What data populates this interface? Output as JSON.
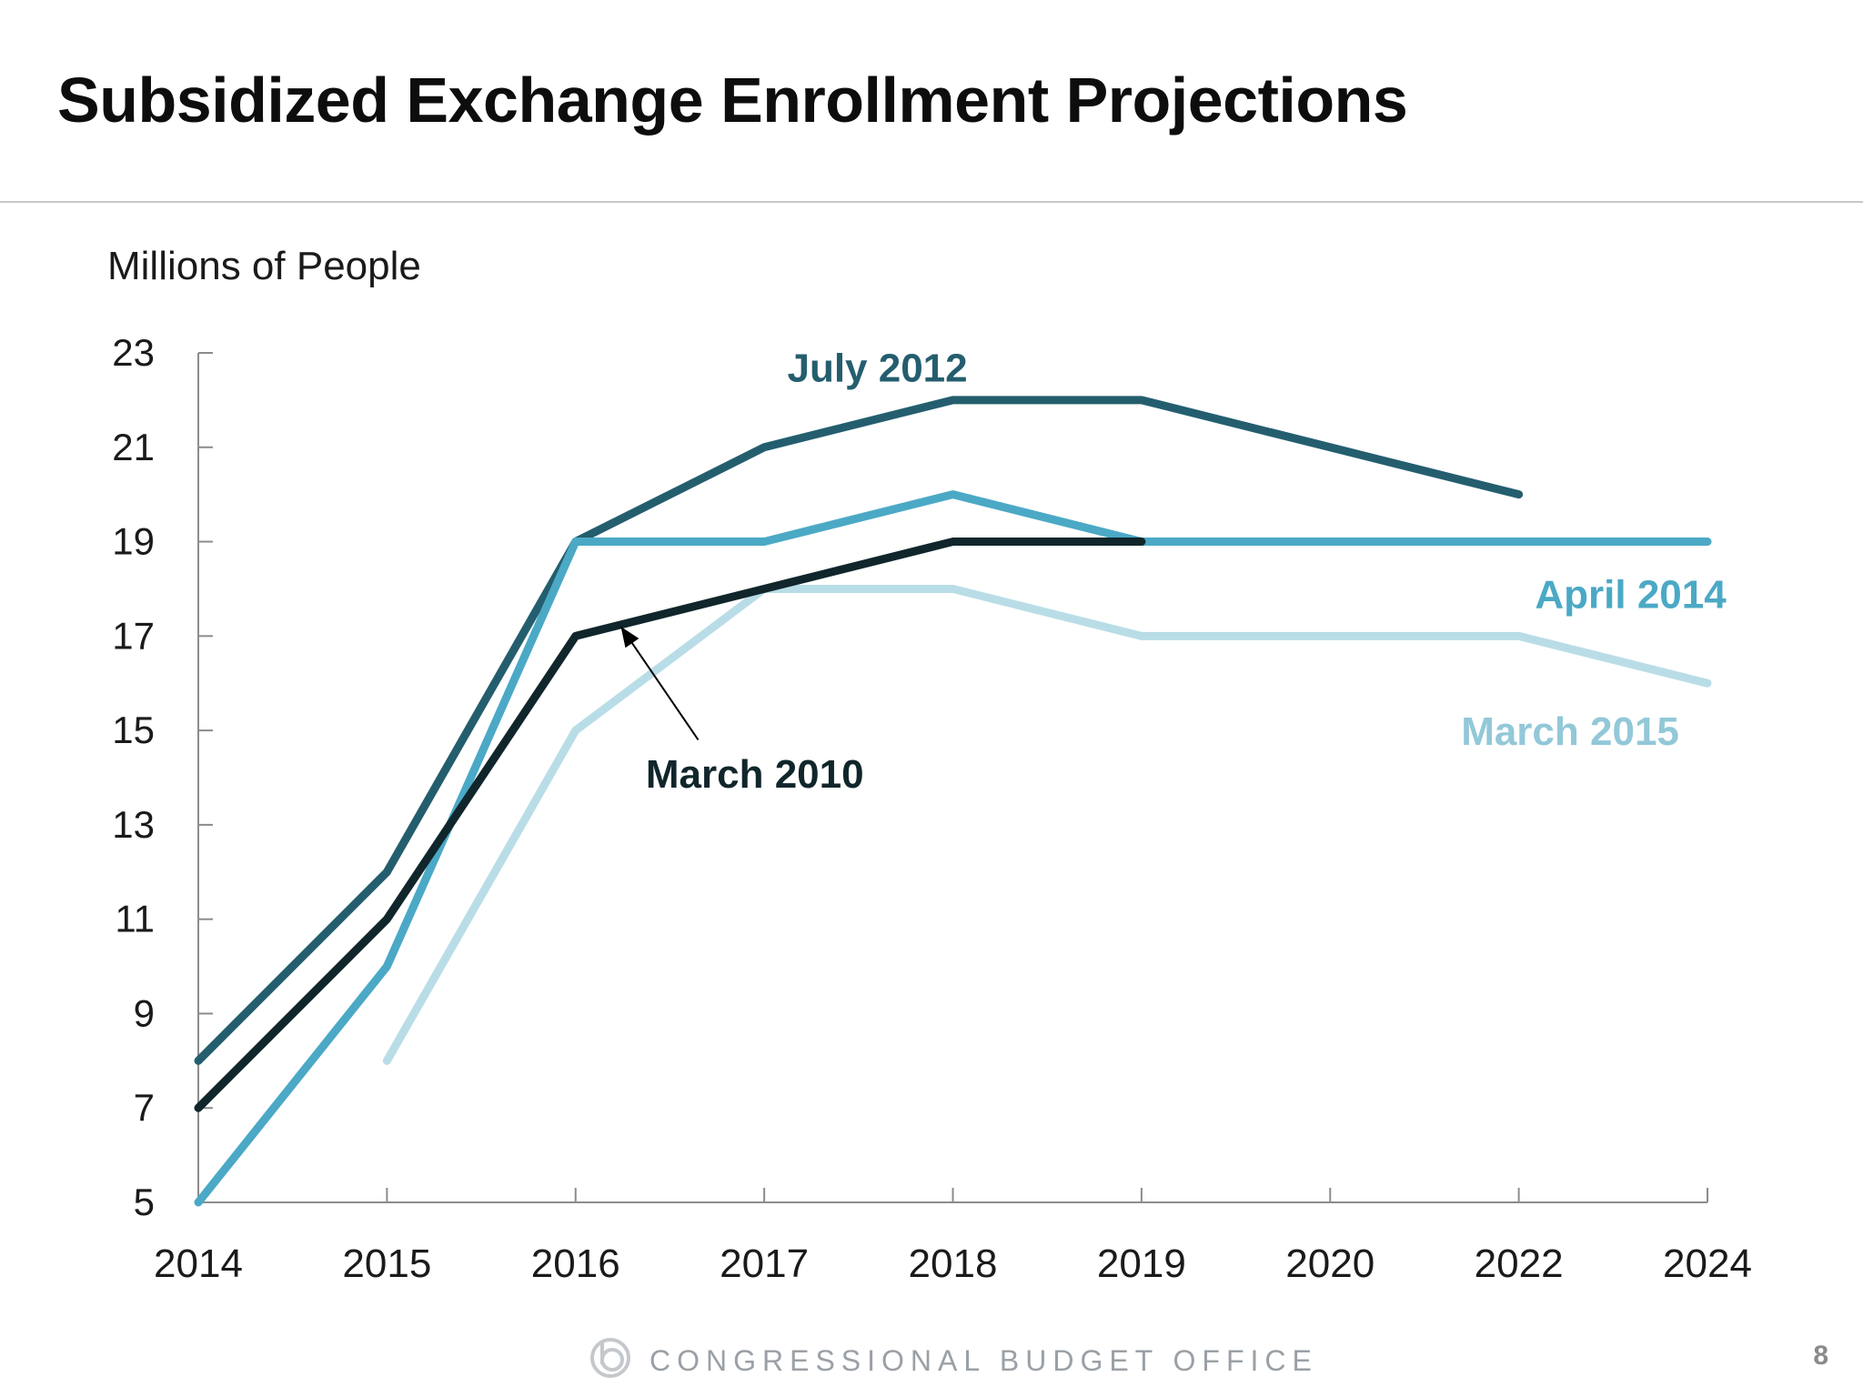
{
  "slide": {
    "title": "Subsidized Exchange Enrollment Projections",
    "footer": "CONGRESSIONAL BUDGET OFFICE",
    "page_number": "8"
  },
  "chart_data": {
    "type": "line",
    "title": "",
    "ylabel": "Millions of People",
    "xlabel": "",
    "categories": [
      "2014",
      "2015",
      "2016",
      "2017",
      "2018",
      "2019",
      "2020",
      "2022",
      "2024"
    ],
    "ylim": [
      5,
      23
    ],
    "yticks": [
      5,
      7,
      9,
      11,
      13,
      15,
      17,
      19,
      21,
      23
    ],
    "grid": false,
    "series": [
      {
        "name": "July 2012",
        "color": "#245e6e",
        "values": [
          8,
          12,
          19,
          21,
          22,
          22,
          21,
          20,
          null
        ]
      },
      {
        "name": "April 2014",
        "color": "#4ba9c6",
        "values": [
          5,
          10,
          19,
          19,
          20,
          19,
          19,
          19,
          19
        ]
      },
      {
        "name": "March 2010",
        "color": "#10262b",
        "values": [
          7,
          11,
          17,
          18,
          19,
          19,
          null,
          null,
          null
        ]
      },
      {
        "name": "March 2015",
        "color": "#b9dde7",
        "values": [
          null,
          8,
          15,
          18,
          18,
          17,
          17,
          17,
          16
        ]
      }
    ],
    "labels": [
      {
        "series": "July 2012",
        "text": "July 2012",
        "color": "#245e6e"
      },
      {
        "series": "April 2014",
        "text": "April 2014",
        "color": "#4ba9c6"
      },
      {
        "series": "March 2015",
        "text": "March 2015",
        "color": "#92c8d8"
      },
      {
        "series": "March 2010",
        "text": "March 2010",
        "color": "#10262b"
      }
    ]
  }
}
